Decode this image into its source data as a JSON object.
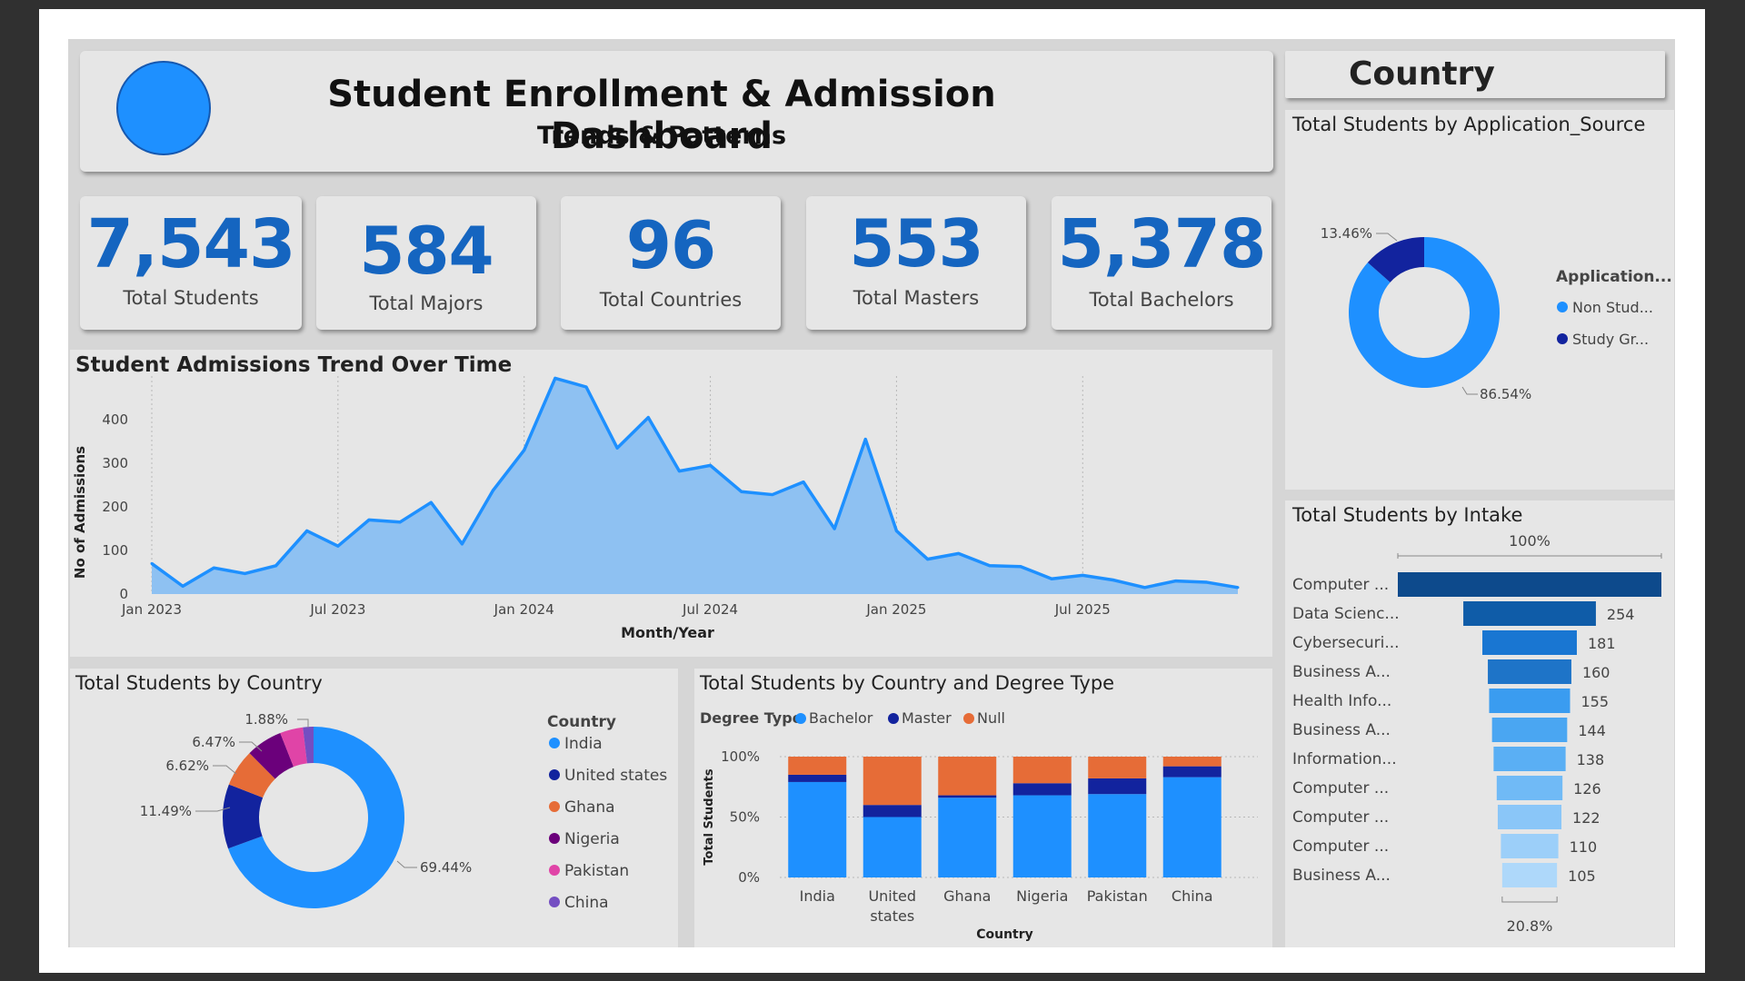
{
  "header": {
    "title": "Student Enrollment & Admission Dashboard",
    "subtitle": "Trends & Patterns"
  },
  "country_button": {
    "label": "Country"
  },
  "kpis": [
    {
      "value": "7,543",
      "label": "Total Students"
    },
    {
      "value": "584",
      "label": "Total Majors"
    },
    {
      "value": "96",
      "label": "Total Countries"
    },
    {
      "value": "553",
      "label": "Total Masters"
    },
    {
      "value": "5,378",
      "label": "Total Bachelors"
    }
  ],
  "colors": {
    "accent": "#1e90ff",
    "kpi": "#1565c0",
    "dark_blue": "#12239e",
    "orange": "#e66c37",
    "purple": "#6b007b",
    "pink": "#e044a7",
    "violet": "#744ec2"
  },
  "chart_data": [
    {
      "id": "trend",
      "type": "area",
      "title": "Student Admissions Trend Over Time",
      "xlabel": "Month/Year",
      "ylabel": "No of Admissions",
      "ylim": [
        0,
        500
      ],
      "yticks": [
        0,
        100,
        200,
        300,
        400
      ],
      "xtick_labels": [
        "Jan 2023",
        "Jul 2023",
        "Jan 2024",
        "Jul 2024",
        "Jan 2025",
        "Jul 2025"
      ],
      "x": [
        "2023-01",
        "2023-02",
        "2023-03",
        "2023-04",
        "2023-05",
        "2023-06",
        "2023-07",
        "2023-08",
        "2023-09",
        "2023-10",
        "2023-11",
        "2023-12",
        "2024-01",
        "2024-02",
        "2024-03",
        "2024-04",
        "2024-05",
        "2024-06",
        "2024-07",
        "2024-08",
        "2024-09",
        "2024-10",
        "2024-11",
        "2024-12",
        "2025-01",
        "2025-02",
        "2025-03",
        "2025-04",
        "2025-05",
        "2025-06",
        "2025-07",
        "2025-08",
        "2025-09",
        "2025-10",
        "2025-11",
        "2025-12"
      ],
      "values": [
        70,
        18,
        60,
        47,
        65,
        145,
        110,
        170,
        165,
        210,
        115,
        238,
        330,
        495,
        475,
        335,
        405,
        282,
        295,
        235,
        228,
        257,
        150,
        355,
        145,
        80,
        93,
        65,
        63,
        35,
        43,
        32,
        15,
        30,
        27,
        15
      ],
      "grid": "vertical dotted"
    },
    {
      "id": "app_source",
      "type": "pie",
      "title": "Total Students by Application_Source",
      "legend_title": "Application...",
      "categories": [
        "Non Stud...",
        "Study Gr..."
      ],
      "values": [
        86.54,
        13.46
      ],
      "labels": [
        "86.54%",
        "13.46%"
      ],
      "colors": [
        "#1e90ff",
        "#12239e"
      ],
      "legend": "right"
    },
    {
      "id": "intake",
      "type": "bar",
      "title": "Total Students by Intake",
      "categories": [
        "Computer ...",
        "Data Scienc...",
        "Cybersecuri...",
        "Business A...",
        "Health Info...",
        "Business A...",
        "Information...",
        "Computer ...",
        "Computer ...",
        "Computer ...",
        "Business A..."
      ],
      "values": [
        505,
        254,
        181,
        160,
        155,
        144,
        138,
        126,
        122,
        110,
        105
      ],
      "value_labels": [
        "",
        "254",
        "181",
        "160",
        "155",
        "144",
        "138",
        "126",
        "122",
        "110",
        "105"
      ],
      "top_label": "100%",
      "bottom_label": "20.8%",
      "colors": [
        "#0d4a8c",
        "#0f5ca8",
        "#1976d2",
        "#1e74c8",
        "#3a9cf0",
        "#4aa6f2",
        "#5aaff4",
        "#70baf6",
        "#8ac6f8",
        "#9ccff9",
        "#aed8fa"
      ]
    },
    {
      "id": "country",
      "type": "pie",
      "title": "Total Students by Country",
      "legend_title": "Country",
      "categories": [
        "India",
        "United states",
        "Ghana",
        "Nigeria",
        "Pakistan",
        "China"
      ],
      "values": [
        69.44,
        11.49,
        6.62,
        6.47,
        4.1,
        1.88
      ],
      "labels": [
        "69.44%",
        "11.49%",
        "6.62%",
        "6.47%",
        "",
        "1.88%"
      ],
      "colors": [
        "#1e90ff",
        "#12239e",
        "#e66c37",
        "#6b007b",
        "#e044a7",
        "#744ec2"
      ],
      "legend": "right"
    },
    {
      "id": "degree",
      "type": "bar",
      "stacked": "100%",
      "title": "Total Students by Country and Degree Type",
      "legend_title": "Degree Type",
      "xlabel": "Country",
      "ylabel": "Total Students",
      "yticks": [
        "0%",
        "50%",
        "100%"
      ],
      "categories": [
        "India",
        "United states",
        "Ghana",
        "Nigeria",
        "Pakistan",
        "China"
      ],
      "series": [
        {
          "name": "Bachelor",
          "color": "#1e90ff",
          "values": [
            79,
            50,
            66,
            68,
            69,
            83
          ]
        },
        {
          "name": "Master",
          "color": "#12239e",
          "values": [
            6,
            10,
            2,
            10,
            13,
            9
          ]
        },
        {
          "name": "Null",
          "color": "#e66c37",
          "values": [
            15,
            40,
            32,
            22,
            18,
            8
          ]
        }
      ]
    }
  ]
}
